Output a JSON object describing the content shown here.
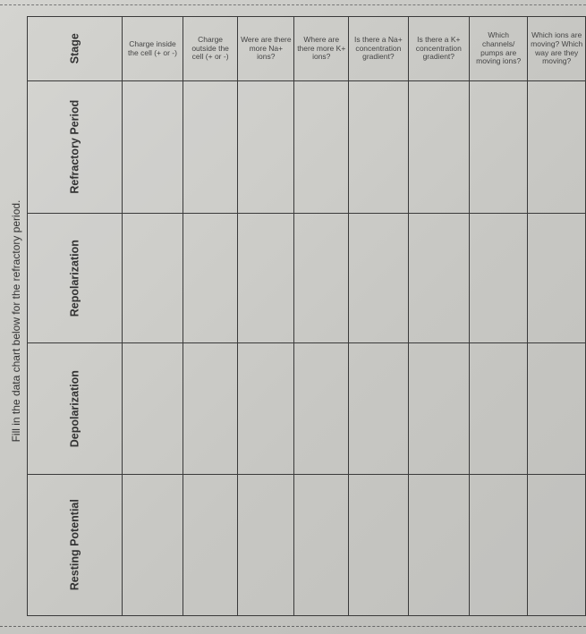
{
  "instruction": "Fill in the data chart below for the refractory period.",
  "table": {
    "stage_header": "Stage",
    "columns": [
      "Charge inside the cell (+ or -)",
      "Charge outside the cell (+ or -)",
      "Were are there more Na+ ions?",
      "Where are there more K+ ions?",
      "Is there a Na+ concentration gradient?",
      "Is there a K+ concentration gradient?",
      "Which channels/ pumps are moving ions?",
      "Which ions are moving? Which way are they moving?"
    ],
    "rows": [
      {
        "stage": "Refractory Period"
      },
      {
        "stage": "Repolarization"
      },
      {
        "stage": "Depolarization"
      },
      {
        "stage": "Resting Potential"
      }
    ]
  }
}
